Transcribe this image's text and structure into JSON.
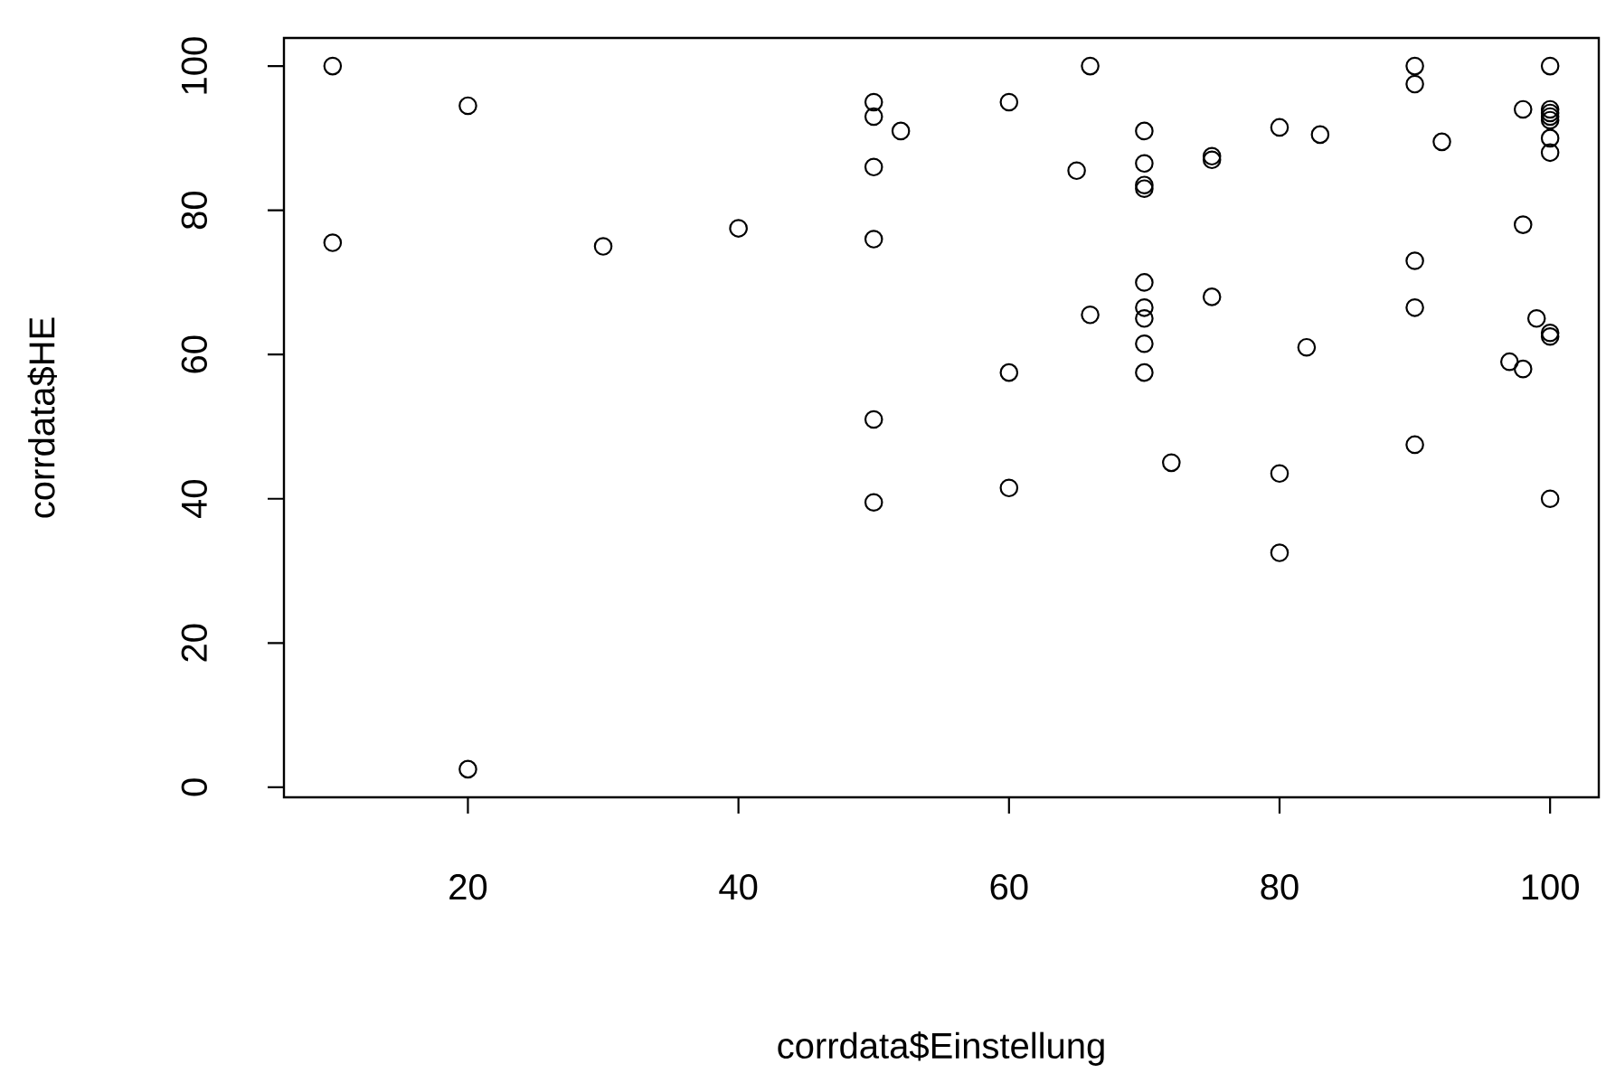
{
  "chart_data": {
    "type": "scatter",
    "xlabel": "corrdata$Einstellung",
    "ylabel": "corrdata$HE",
    "xlim": [
      6.4,
      103.6
    ],
    "ylim": [
      -1.4,
      103.9
    ],
    "xticks": [
      20,
      40,
      60,
      80,
      100
    ],
    "yticks": [
      0,
      20,
      40,
      60,
      80,
      100
    ],
    "grid": false,
    "marker": "circle",
    "series": [
      {
        "color": "#000000",
        "x": [
          10,
          10,
          20,
          20,
          30,
          40,
          50,
          50,
          50,
          50,
          50,
          50,
          52,
          60,
          60,
          60,
          65,
          66,
          66,
          70,
          70,
          70,
          70,
          70,
          70,
          70,
          70,
          70,
          72,
          75,
          75,
          75,
          80,
          80,
          80,
          82,
          83,
          90,
          90,
          90,
          90,
          90,
          92,
          97,
          98,
          98,
          98,
          99,
          100,
          100,
          100,
          100,
          100,
          100,
          100,
          100,
          100,
          100
        ],
        "values": [
          100,
          75.5,
          94.5,
          2.5,
          75,
          77.5,
          95,
          93,
          86,
          76,
          51,
          39.5,
          91,
          95,
          57.5,
          41.5,
          85.5,
          100,
          65.5,
          91,
          86.5,
          83.5,
          83,
          70,
          66.5,
          65,
          61.5,
          57.5,
          45,
          87.5,
          87,
          68,
          91.5,
          43.5,
          32.5,
          61,
          90.5,
          100,
          97.5,
          73,
          66.5,
          47.5,
          89.5,
          59,
          94,
          78,
          58,
          65,
          100,
          94,
          93.5,
          93,
          92.5,
          90,
          88,
          63,
          62.5,
          40
        ]
      }
    ]
  }
}
